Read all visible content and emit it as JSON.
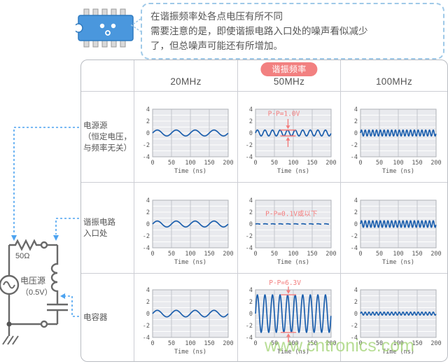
{
  "bubble": {
    "lines": [
      "在谐振频率处各点电压有所不同",
      "需要注意的是，即使谐振电路入口处的噪声看似减少",
      "了，但总噪声可能还有所增加。"
    ]
  },
  "table": {
    "resonance_badge": "谐振频率",
    "col_headers": [
      "20MHz",
      "50MHz",
      "100MHz"
    ],
    "row_headers": [
      {
        "lines": [
          "电源源",
          "（恒定电压，",
          "与频率无关）"
        ]
      },
      {
        "lines": [
          "谐振电路",
          "入口处"
        ]
      },
      {
        "lines": [
          "电容器"
        ]
      }
    ]
  },
  "circuit": {
    "resistor_label": "50Ω",
    "source_label": "电压源",
    "source_value": "（0.5V）"
  },
  "watermark": "www.cntronics.com",
  "colors": {
    "accent_red": "#f37d7d",
    "badge_red": "#f28080",
    "wave_blue": "#1c5fad",
    "connector_blue": "#4da3f0",
    "plot_bg": "#e9eaee",
    "grid_gray": "#c3c6cc",
    "border_gray": "#ccced4",
    "text_gray": "#555555",
    "circuit_gray": "#696969",
    "chip_blue": "#4a97dd",
    "bubble_border": "#9fc9e8",
    "watermark_green": "#a6d57a"
  },
  "chart_data": {
    "type": "line",
    "x_label": "Time (ns)",
    "x_range": [
      0,
      200
    ],
    "x_ticks": [
      0,
      50,
      100,
      150,
      200
    ],
    "y_ticks": [
      4,
      2,
      0,
      -2,
      -4
    ],
    "ylim": [
      -4,
      4
    ],
    "grid": true,
    "rows": [
      "电源源（恒定电压，与频率无关）",
      "谐振电路入口处",
      "电容器"
    ],
    "cols": [
      "20MHz",
      "50MHz",
      "100MHz"
    ],
    "plots": [
      {
        "row": 0,
        "col": 0,
        "frequency_mhz": 20,
        "amplitude_v": 0.5,
        "cycles": 4
      },
      {
        "row": 0,
        "col": 1,
        "frequency_mhz": 50,
        "amplitude_v": 0.5,
        "cycles": 10,
        "annotation": {
          "text": "P-P=1.0V",
          "text_x": 75,
          "text_y": 2.9,
          "pp": 1.0,
          "arrow_x": 86,
          "arrow_top_from": 2.35,
          "arrow_bot_from": -2.35
        }
      },
      {
        "row": 0,
        "col": 2,
        "frequency_mhz": 100,
        "amplitude_v": 0.5,
        "cycles": 20
      },
      {
        "row": 1,
        "col": 0,
        "frequency_mhz": 20,
        "amplitude_v": 0.5,
        "cycles": 4
      },
      {
        "row": 1,
        "col": 1,
        "frequency_mhz": 50,
        "amplitude_v": 0.04,
        "cycles": 10,
        "dashed": true,
        "annotation": {
          "text": "P-P=0.1V或以下",
          "text_x": 95,
          "text_y": 1.35
        }
      },
      {
        "row": 1,
        "col": 2,
        "frequency_mhz": 100,
        "amplitude_v": 0.55,
        "cycles": 20
      },
      {
        "row": 2,
        "col": 0,
        "frequency_mhz": 20,
        "amplitude_v": 0.55,
        "cycles": 4
      },
      {
        "row": 2,
        "col": 1,
        "frequency_mhz": 50,
        "amplitude_v": 3.15,
        "cycles": 10,
        "annotation": {
          "text": "P-P=6.3V",
          "text_x": 78,
          "text_y": 4.85,
          "pp": 6.3,
          "arrow_x": 87,
          "arrow_top_from": 4.55,
          "arrow_bot_from": -4.85
        }
      },
      {
        "row": 2,
        "col": 2,
        "frequency_mhz": 100,
        "amplitude_v": 0.25,
        "cycles": 20
      }
    ]
  }
}
